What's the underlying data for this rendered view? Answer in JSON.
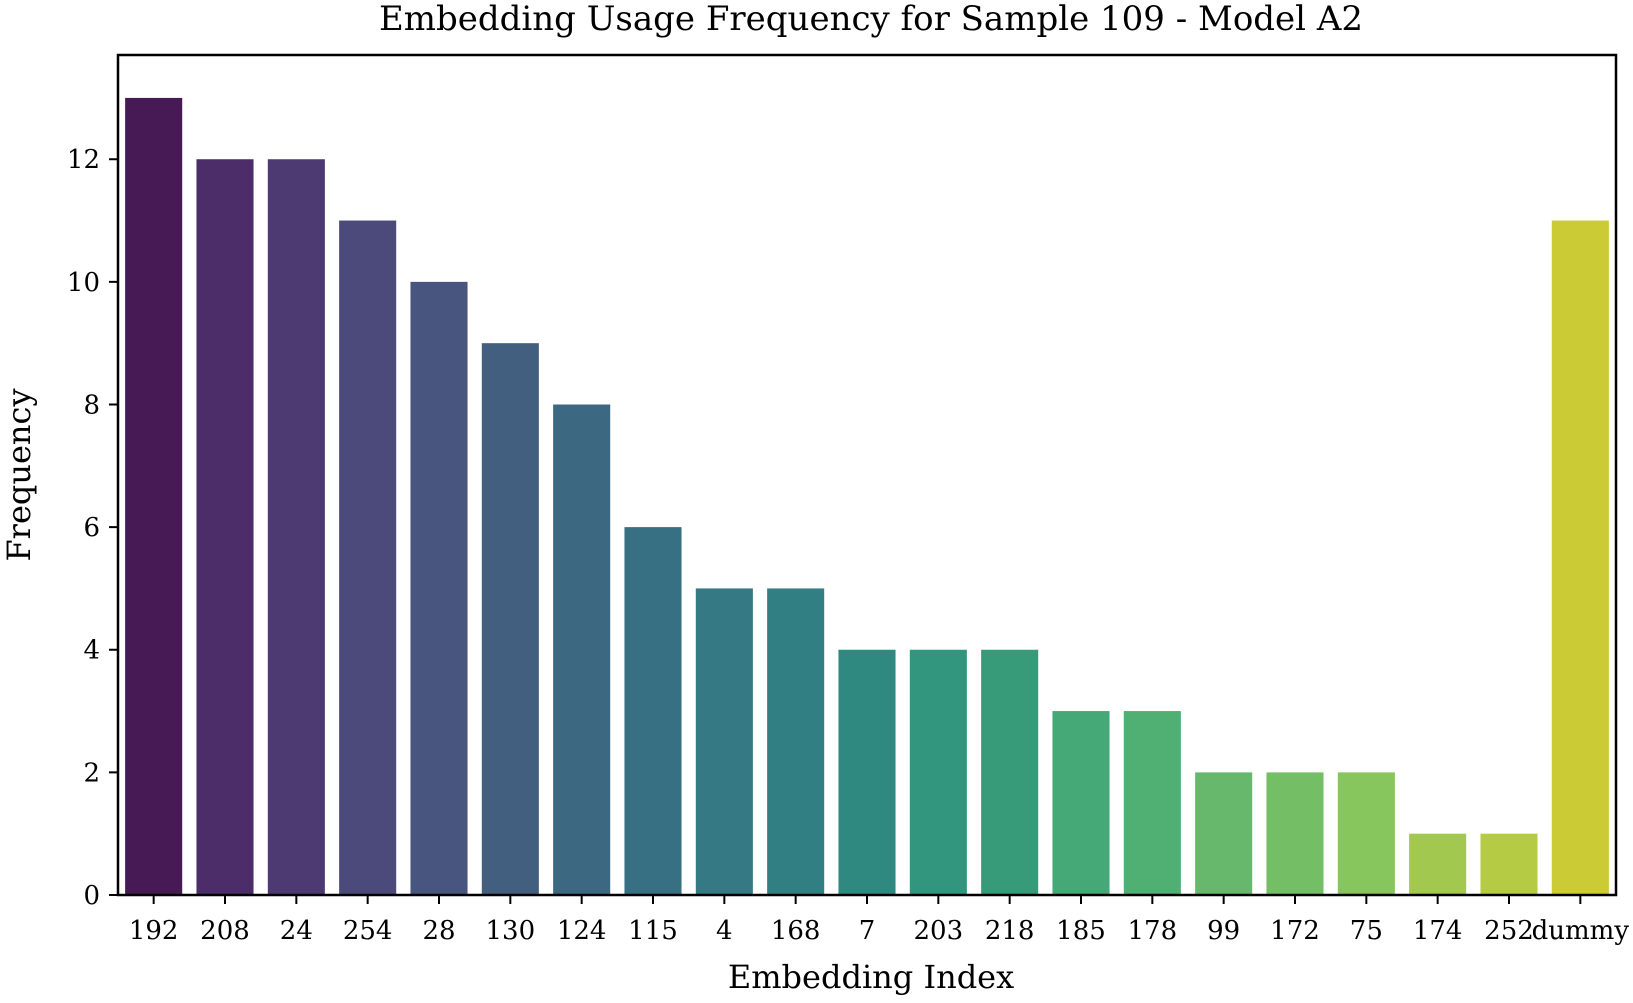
{
  "chart_data": {
    "type": "bar",
    "title": "Embedding Usage Frequency for Sample 109 - Model A2",
    "xlabel": "Embedding Index",
    "ylabel": "Frequency",
    "categories": [
      "192",
      "208",
      "24",
      "254",
      "28",
      "130",
      "124",
      "115",
      "4",
      "168",
      "7",
      "203",
      "218",
      "185",
      "178",
      "99",
      "172",
      "75",
      "174",
      "252",
      "dummy"
    ],
    "values": [
      13,
      12,
      12,
      11,
      10,
      9,
      8,
      6,
      5,
      5,
      4,
      4,
      4,
      3,
      3,
      2,
      2,
      2,
      1,
      1,
      11
    ],
    "colors": [
      "#471a55",
      "#4c2c69",
      "#4d3a73",
      "#4c4a7b",
      "#48567f",
      "#435f80",
      "#3d6881",
      "#377083",
      "#347983",
      "#317f82",
      "#2f8980",
      "#32957e",
      "#379b7a",
      "#44a877",
      "#50b074",
      "#67b86c",
      "#74bf66",
      "#87c55d",
      "#a2c84f",
      "#b5cb44",
      "#cbcb35"
    ],
    "yticks": [
      0,
      2,
      4,
      6,
      8,
      10,
      12
    ],
    "ylim": [
      0,
      13.7
    ],
    "grid": false,
    "legend": "none"
  }
}
